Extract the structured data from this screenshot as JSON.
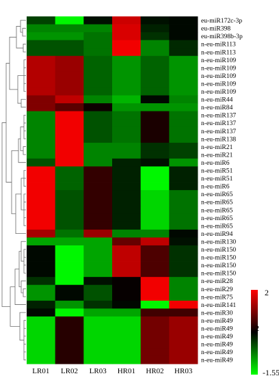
{
  "chart_data": {
    "type": "heatmap",
    "columns": [
      "LR01",
      "LR02",
      "LR03",
      "HR01",
      "HR02",
      "HR03"
    ],
    "rows": [
      "eu-miR172c-3p",
      "eu-miR398",
      "eu-miR398b-3p",
      "n-eu-miR113",
      "n-eu-miR113",
      "n-eu-miR109",
      "n-eu-miR109",
      "n-eu-miR109",
      "n-eu-miR109",
      "n-eu-miR109",
      "n-eu-miR44",
      "n-eu-miR84",
      "n-eu-miR137",
      "n-eu-miR137",
      "n-eu-miR137",
      "n-eu-miR138",
      "n-eu-miR21",
      "n-eu-miR21",
      "n-eu-miR6",
      "n-eu-miR51",
      "n-eu-miR51",
      "n-eu-miR6",
      "n-eu-miR65",
      "n-eu-miR65",
      "n-eu-miR65",
      "n-eu-miR65",
      "n-eu-miR65",
      "n-eu-miR94",
      "n-eu-miR130",
      "n-eu-miR150",
      "n-eu-miR150",
      "n-eu-miR150",
      "n-eu-miR150",
      "n-eu-miR28",
      "n-eu-miR29",
      "n-eu-miR75",
      "n-eu-miR141",
      "n-eu-miR30",
      "n-eu-miR49",
      "n-eu-miR49",
      "n-eu-miR49",
      "n-eu-miR49",
      "n-eu-miR49",
      "n-eu-miR49"
    ],
    "values": [
      [
        -0.4,
        -1.5,
        -0.1,
        1.6,
        -0.1,
        -0.05
      ],
      [
        -0.8,
        -0.8,
        -0.8,
        1.7,
        -0.2,
        -0.05
      ],
      [
        -0.9,
        -0.9,
        -0.7,
        1.7,
        -0.3,
        -0.05
      ],
      [
        -0.5,
        -0.5,
        -0.7,
        1.9,
        -0.8,
        -0.25
      ],
      [
        -0.5,
        -0.5,
        -0.7,
        1.9,
        -0.8,
        -0.25
      ],
      [
        1.4,
        1.2,
        -0.6,
        -0.9,
        -0.6,
        -0.9
      ],
      [
        1.4,
        1.2,
        -0.6,
        -0.9,
        -0.6,
        -0.9
      ],
      [
        1.4,
        1.2,
        -0.6,
        -0.9,
        -0.6,
        -0.9
      ],
      [
        1.4,
        1.2,
        -0.6,
        -0.9,
        -0.6,
        -0.9
      ],
      [
        1.4,
        1.2,
        -0.6,
        -0.9,
        -0.6,
        -0.9
      ],
      [
        1.0,
        1.5,
        -0.8,
        -1.1,
        -0.05,
        -0.8
      ],
      [
        1.0,
        0.7,
        0.1,
        -0.9,
        -0.9,
        -0.9
      ],
      [
        -0.8,
        1.9,
        -0.5,
        -0.7,
        0.2,
        -0.7
      ],
      [
        -0.8,
        1.9,
        -0.5,
        -0.7,
        0.2,
        -0.7
      ],
      [
        -0.8,
        1.9,
        -0.5,
        -0.7,
        0.2,
        -0.7
      ],
      [
        -0.8,
        1.9,
        -0.5,
        -0.7,
        0.2,
        -0.7
      ],
      [
        -0.8,
        1.9,
        -0.8,
        -0.8,
        -0.3,
        -0.4
      ],
      [
        -0.8,
        1.9,
        -0.8,
        -0.8,
        -0.3,
        -0.4
      ],
      [
        -0.5,
        1.9,
        -0.8,
        -0.2,
        -0.1,
        -0.9
      ],
      [
        1.9,
        -0.6,
        0.4,
        -0.2,
        -1.5,
        -0.2
      ],
      [
        1.9,
        -0.6,
        0.4,
        -0.2,
        -1.5,
        -0.2
      ],
      [
        1.9,
        -0.6,
        0.4,
        -0.2,
        -1.5,
        -0.2
      ],
      [
        1.9,
        -0.5,
        0.4,
        -0.2,
        -1.3,
        -0.7
      ],
      [
        1.9,
        -0.5,
        0.4,
        -0.2,
        -1.3,
        -0.7
      ],
      [
        1.9,
        -0.5,
        0.4,
        -0.2,
        -1.3,
        -0.7
      ],
      [
        1.9,
        -0.5,
        0.4,
        -0.2,
        -1.3,
        -0.7
      ],
      [
        1.9,
        -0.5,
        0.4,
        -0.2,
        -1.3,
        -0.7
      ],
      [
        1.3,
        -0.7,
        1.2,
        -0.8,
        -0.8,
        -0.05
      ],
      [
        -1.0,
        -1.0,
        -1.0,
        0.8,
        1.5,
        -0.1
      ],
      [
        -0.05,
        -1.5,
        -1.0,
        1.5,
        0.6,
        -0.3
      ],
      [
        -0.05,
        -1.5,
        -1.0,
        1.5,
        0.6,
        -0.3
      ],
      [
        -0.05,
        -1.5,
        -1.0,
        1.5,
        0.6,
        -0.3
      ],
      [
        -0.05,
        -1.5,
        -1.0,
        1.5,
        0.6,
        -0.3
      ],
      [
        -0.3,
        -1.5,
        -0.1,
        0.05,
        1.9,
        -0.8
      ],
      [
        -0.9,
        -0.05,
        -0.5,
        0.05,
        1.9,
        -0.8
      ],
      [
        -0.9,
        -0.05,
        -0.5,
        0.05,
        1.9,
        -0.8
      ],
      [
        -0.2,
        -0.9,
        -0.3,
        -0.05,
        -1.5,
        1.9
      ],
      [
        -0.05,
        -1.5,
        -1.0,
        -1.0,
        0.5,
        0.5
      ],
      [
        -1.3,
        0.3,
        -1.3,
        -1.3,
        0.9,
        1.2
      ],
      [
        -1.3,
        0.3,
        -1.3,
        -1.3,
        0.9,
        1.2
      ],
      [
        -1.3,
        0.3,
        -1.3,
        -1.3,
        0.9,
        1.2
      ],
      [
        -1.3,
        0.3,
        -1.3,
        -1.3,
        0.9,
        1.2
      ],
      [
        -1.3,
        0.3,
        -1.3,
        -1.3,
        0.9,
        1.2
      ],
      [
        -1.3,
        0.3,
        -1.3,
        -1.3,
        0.9,
        1.2
      ]
    ],
    "color_scale": {
      "min": -1.55,
      "max": 2,
      "low_color": "#00ff00",
      "mid_color": "#000000",
      "high_color": "#ff0000",
      "tick_labels": [
        "2",
        "2",
        "-1.55"
      ]
    },
    "row_dendrogram": "left"
  }
}
